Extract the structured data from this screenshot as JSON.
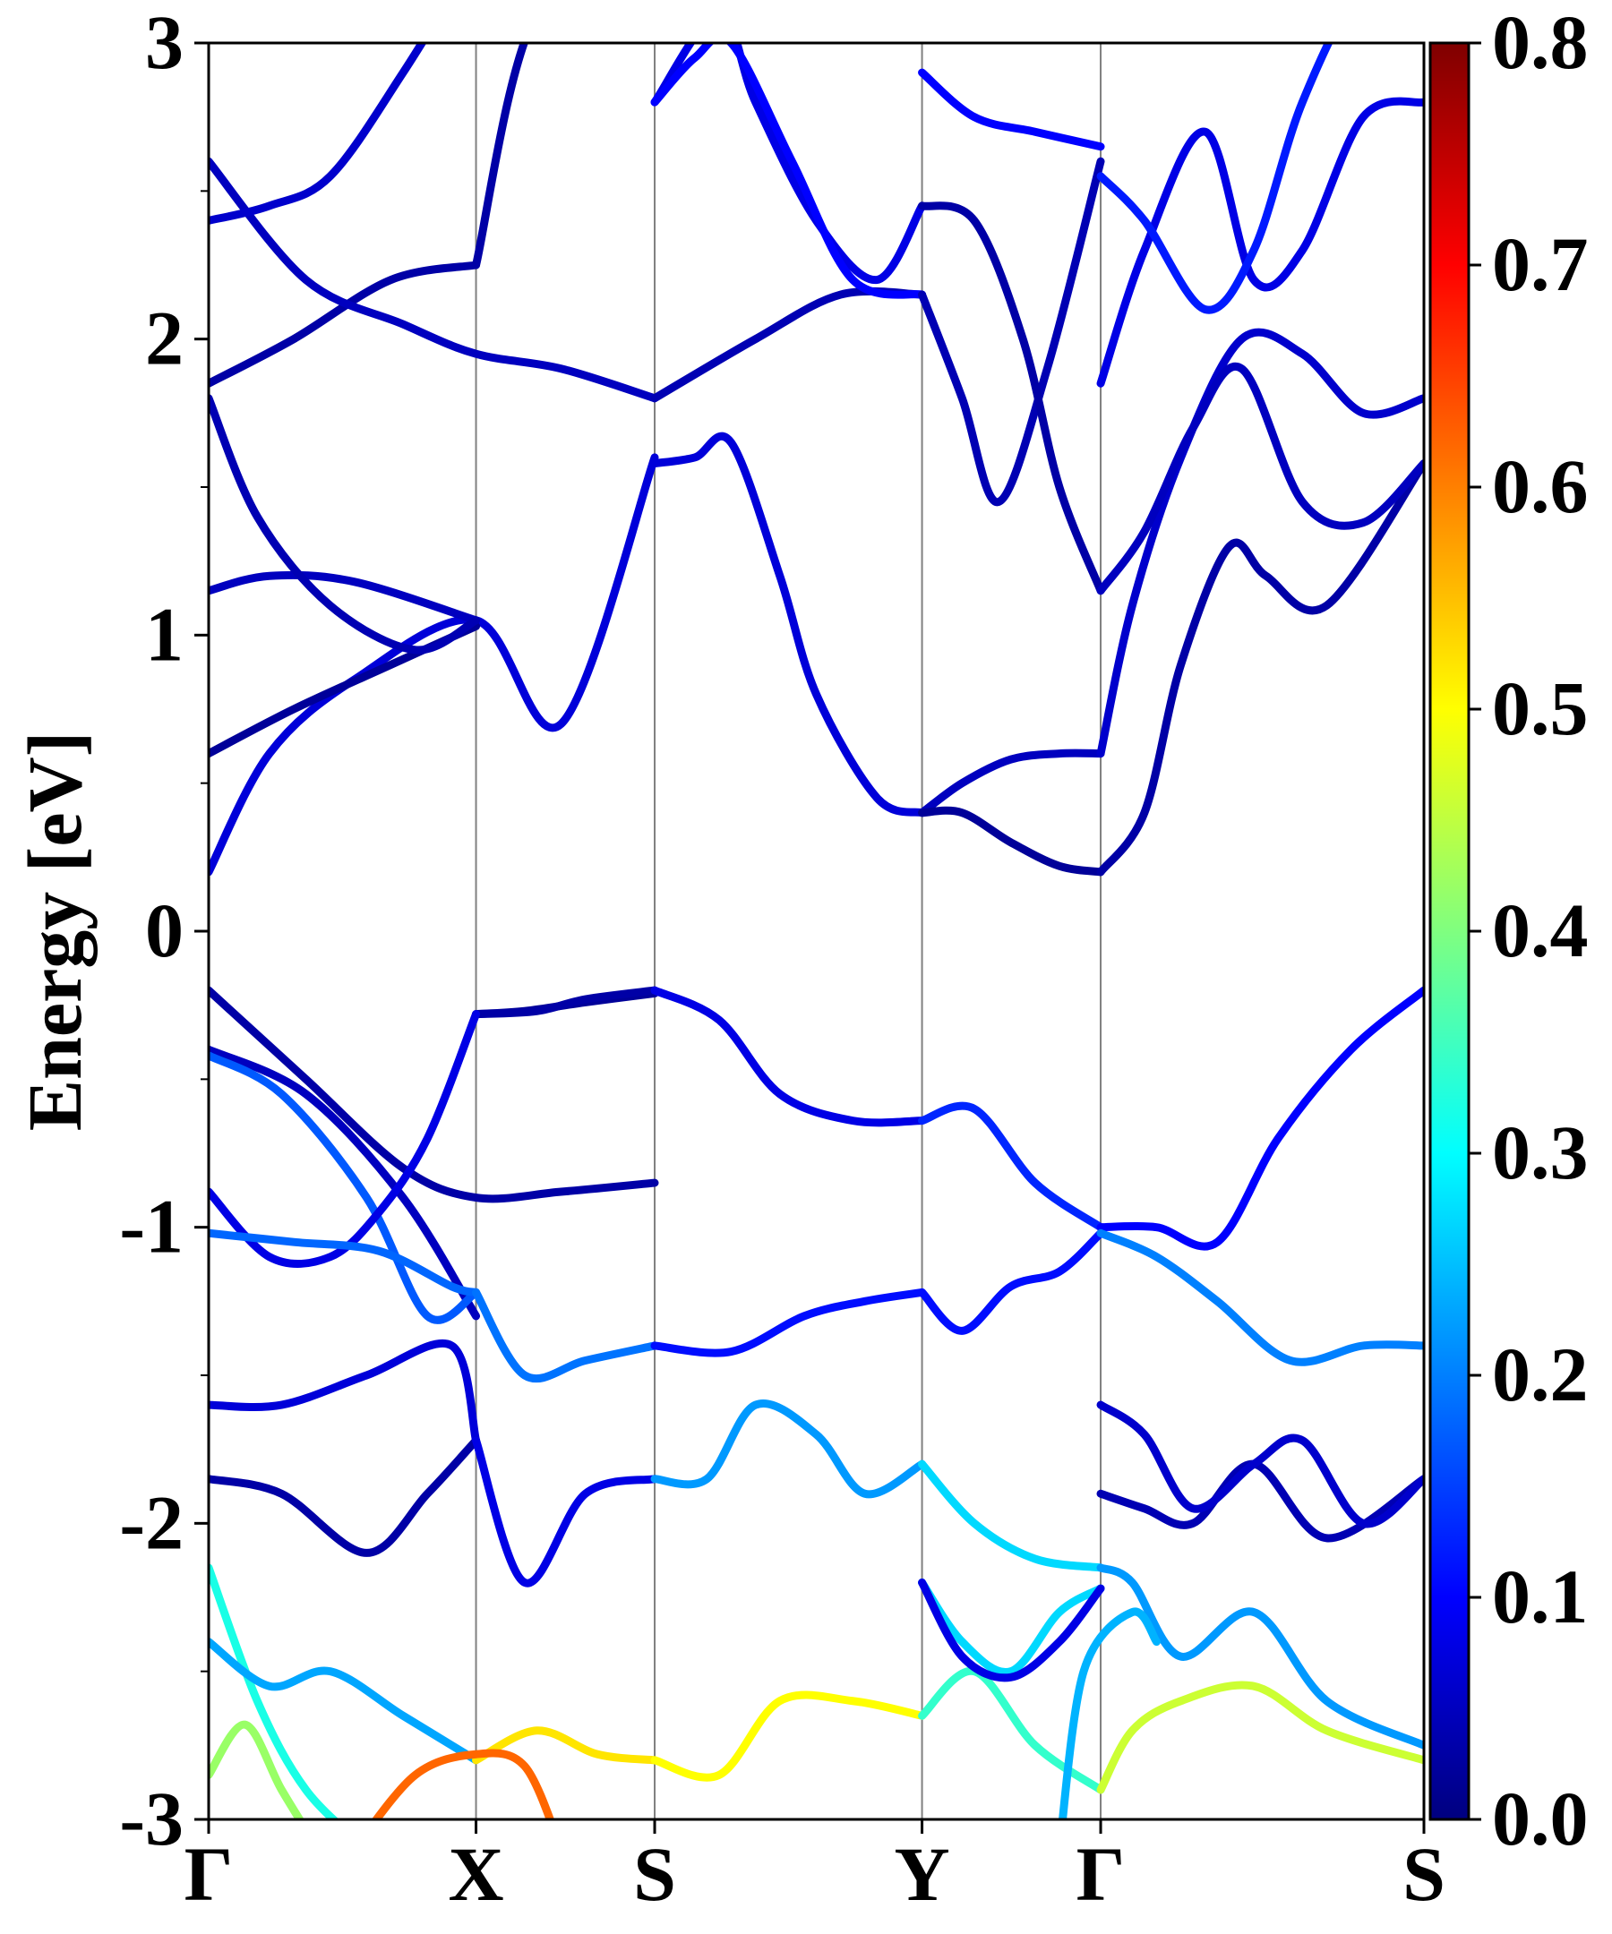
{
  "chart_data": {
    "type": "line",
    "title": "",
    "ylabel": "Energy [eV]",
    "xlabel": "",
    "ylim": [
      -3,
      3
    ],
    "yticks": [
      "3",
      "2",
      "1",
      "0",
      "-1",
      "-2",
      "-3"
    ],
    "ytick_values": [
      3,
      2,
      1,
      0,
      -1,
      -2,
      -3
    ],
    "kpoints": [
      {
        "label": "Γ",
        "x": 0.0
      },
      {
        "label": "X",
        "x": 0.22
      },
      {
        "label": "S",
        "x": 0.367
      },
      {
        "label": "Y",
        "x": 0.587
      },
      {
        "label": "Γ",
        "x": 0.734
      },
      {
        "label": "S",
        "x": 1.0
      }
    ],
    "colorbar": {
      "label": "",
      "min": 0.0,
      "max": 0.8,
      "ticks": [
        "0.8",
        "0.7",
        "0.6",
        "0.5",
        "0.4",
        "0.3",
        "0.2",
        "0.1",
        "0.0"
      ],
      "tick_values": [
        0.8,
        0.7,
        0.6,
        0.5,
        0.4,
        0.3,
        0.2,
        0.1,
        0.0
      ],
      "colormap": "jet"
    },
    "series": [
      {
        "x": [
          0,
          0.05,
          0.12,
          0.22,
          0.29,
          0.367
        ],
        "y": [
          0.2,
          0.6,
          0.85,
          1.05,
          0.7,
          1.6
        ],
        "weight": 0.07
      },
      {
        "x": [
          0,
          0.07,
          0.15,
          0.22
        ],
        "y": [
          0.6,
          0.75,
          0.9,
          1.03
        ],
        "weight": 0.02
      },
      {
        "x": [
          0,
          0.05,
          0.12,
          0.22
        ],
        "y": [
          1.15,
          1.2,
          1.18,
          1.05
        ],
        "weight": 0.05
      },
      {
        "x": [
          0,
          0.04,
          0.1,
          0.17,
          0.22
        ],
        "y": [
          1.8,
          1.4,
          1.1,
          0.95,
          1.05
        ],
        "weight": 0.04
      },
      {
        "x": [
          0,
          0.07,
          0.15,
          0.22
        ],
        "y": [
          1.85,
          2.0,
          2.2,
          2.25
        ],
        "weight": 0.03
      },
      {
        "x": [
          0.22,
          0.27,
          0.367
        ],
        "y": [
          2.25,
          3.1,
          3.3
        ],
        "weight": 0.03
      },
      {
        "x": [
          0,
          0.08,
          0.16,
          0.22,
          0.29,
          0.367
        ],
        "y": [
          2.6,
          2.2,
          2.05,
          1.95,
          1.9,
          1.8
        ],
        "weight": 0.05
      },
      {
        "x": [
          0.367,
          0.45,
          0.52,
          0.587
        ],
        "y": [
          1.8,
          2.0,
          2.15,
          2.15
        ],
        "weight": 0.04
      },
      {
        "x": [
          0,
          0.05,
          0.1,
          0.16,
          0.22
        ],
        "y": [
          2.4,
          2.45,
          2.55,
          2.9,
          3.3
        ],
        "weight": 0.06
      },
      {
        "x": [
          0.367,
          0.4,
          0.43,
          0.47,
          0.5,
          0.55,
          0.587
        ],
        "y": [
          1.58,
          1.6,
          1.65,
          1.2,
          0.8,
          0.45,
          0.4
        ],
        "weight": 0.07
      },
      {
        "x": [
          0.367,
          0.42,
          0.45,
          0.5,
          0.55,
          0.587
        ],
        "y": [
          2.8,
          3.1,
          2.8,
          2.4,
          2.2,
          2.45
        ],
        "weight": 0.08
      },
      {
        "x": [
          0.367,
          0.4,
          0.43,
          0.48,
          0.53,
          0.587
        ],
        "y": [
          2.8,
          2.95,
          3.0,
          2.6,
          2.2,
          2.15
        ],
        "weight": 0.1
      },
      {
        "x": [
          0.587,
          0.62,
          0.66,
          0.7,
          0.734
        ],
        "y": [
          0.4,
          0.5,
          0.58,
          0.6,
          0.6
        ],
        "weight": 0.05
      },
      {
        "x": [
          0.587,
          0.62,
          0.66,
          0.7,
          0.734
        ],
        "y": [
          0.4,
          0.4,
          0.3,
          0.22,
          0.2
        ],
        "weight": 0.02
      },
      {
        "x": [
          0.587,
          0.62,
          0.65,
          0.69,
          0.734
        ],
        "y": [
          2.15,
          1.8,
          1.45,
          1.9,
          2.6
        ],
        "weight": 0.04
      },
      {
        "x": [
          0.587,
          0.63,
          0.67,
          0.7,
          0.734
        ],
        "y": [
          2.45,
          2.4,
          2.0,
          1.5,
          1.15
        ],
        "weight": 0.03
      },
      {
        "x": [
          0.587,
          0.63,
          0.68,
          0.734
        ],
        "y": [
          2.9,
          2.75,
          2.7,
          2.65
        ],
        "weight": 0.1
      },
      {
        "x": [
          0.734,
          0.76,
          0.8,
          0.85,
          0.9,
          0.95,
          1.0
        ],
        "y": [
          0.6,
          1.1,
          1.6,
          2.0,
          1.95,
          1.75,
          1.8
        ],
        "weight": 0.06
      },
      {
        "x": [
          0.734,
          0.77,
          0.8,
          0.84,
          0.87,
          0.92,
          1.0
        ],
        "y": [
          0.2,
          0.4,
          0.9,
          1.3,
          1.2,
          1.1,
          1.58
        ],
        "weight": 0.03
      },
      {
        "x": [
          0.734,
          0.77,
          0.81,
          0.85,
          0.9,
          0.95,
          1.0
        ],
        "y": [
          1.15,
          1.35,
          1.7,
          1.9,
          1.45,
          1.38,
          1.58
        ],
        "weight": 0.05
      },
      {
        "x": [
          0.734,
          0.77,
          0.82,
          0.86,
          0.9,
          0.95,
          1.0
        ],
        "y": [
          1.85,
          2.3,
          2.7,
          2.2,
          2.3,
          2.75,
          2.8
        ],
        "weight": 0.08
      },
      {
        "x": [
          0.734,
          0.77,
          0.82,
          0.86,
          0.9,
          0.95,
          1.0
        ],
        "y": [
          2.55,
          2.4,
          2.1,
          2.3,
          2.8,
          3.2,
          3.3
        ],
        "weight": 0.12
      },
      {
        "x": [
          0,
          0.08,
          0.16,
          0.22,
          0.29,
          0.367
        ],
        "y": [
          -0.2,
          -0.5,
          -0.8,
          -0.9,
          -0.88,
          -0.85
        ],
        "weight": 0.03
      },
      {
        "x": [
          0,
          0.08,
          0.16,
          0.22
        ],
        "y": [
          -0.4,
          -0.55,
          -0.9,
          -1.3
        ],
        "weight": 0.05
      },
      {
        "x": [
          0.22,
          0.26,
          0.31,
          0.367
        ],
        "y": [
          -0.28,
          -0.27,
          -0.24,
          -0.21
        ],
        "weight": 0.02
      },
      {
        "x": [
          0.22,
          0.27,
          0.31,
          0.367
        ],
        "y": [
          -0.28,
          -0.27,
          -0.23,
          -0.2
        ],
        "weight": 0.03
      },
      {
        "x": [
          0.367,
          0.42,
          0.47,
          0.53,
          0.587
        ],
        "y": [
          -0.2,
          -0.3,
          -0.55,
          -0.64,
          -0.64
        ],
        "weight": 0.08
      },
      {
        "x": [
          0.587,
          0.63,
          0.68,
          0.734
        ],
        "y": [
          -0.64,
          -0.6,
          -0.85,
          -1.0
        ],
        "weight": 0.13
      },
      {
        "x": [
          0.734,
          0.78,
          0.83,
          0.88,
          0.94,
          1.0
        ],
        "y": [
          -1.0,
          -1.0,
          -1.05,
          -0.7,
          -0.4,
          -0.2
        ],
        "weight": 0.1
      },
      {
        "x": [
          0,
          0.06,
          0.13,
          0.18,
          0.22
        ],
        "y": [
          -0.42,
          -0.55,
          -0.9,
          -1.3,
          -1.22
        ],
        "weight": 0.17
      },
      {
        "x": [
          0,
          0.05,
          0.1,
          0.14,
          0.18,
          0.22
        ],
        "y": [
          -0.88,
          -1.1,
          -1.1,
          -0.95,
          -0.7,
          -0.28
        ],
        "weight": 0.08
      },
      {
        "x": [
          0,
          0.07,
          0.14,
          0.2,
          0.22
        ],
        "y": [
          -1.02,
          -1.05,
          -1.08,
          -1.2,
          -1.22
        ],
        "weight": 0.18
      },
      {
        "x": [
          0.22,
          0.26,
          0.31,
          0.367
        ],
        "y": [
          -1.22,
          -1.5,
          -1.45,
          -1.4
        ],
        "weight": 0.19
      },
      {
        "x": [
          0.367,
          0.43,
          0.49,
          0.54,
          0.587
        ],
        "y": [
          -1.4,
          -1.42,
          -1.3,
          -1.25,
          -1.22
        ],
        "weight": 0.11
      },
      {
        "x": [
          0.587,
          0.62,
          0.66,
          0.7,
          0.734
        ],
        "y": [
          -1.22,
          -1.35,
          -1.2,
          -1.15,
          -1.02
        ],
        "weight": 0.11
      },
      {
        "x": [
          0.734,
          0.78,
          0.83,
          0.89,
          0.95,
          1.0
        ],
        "y": [
          -1.02,
          -1.1,
          -1.25,
          -1.45,
          -1.4,
          -1.4
        ],
        "weight": 0.2
      },
      {
        "x": [
          0,
          0.06,
          0.13,
          0.2,
          0.22
        ],
        "y": [
          -1.6,
          -1.6,
          -1.5,
          -1.4,
          -1.72
        ],
        "weight": 0.07
      },
      {
        "x": [
          0,
          0.06,
          0.13,
          0.18,
          0.22
        ],
        "y": [
          -1.85,
          -1.9,
          -2.1,
          -1.9,
          -1.72
        ],
        "weight": 0.03
      },
      {
        "x": [
          0.22,
          0.26,
          0.31,
          0.367
        ],
        "y": [
          -1.72,
          -2.2,
          -1.9,
          -1.85
        ],
        "weight": 0.08
      },
      {
        "x": [
          0.367,
          0.41,
          0.45,
          0.5,
          0.54,
          0.587
        ],
        "y": [
          -1.85,
          -1.85,
          -1.6,
          -1.7,
          -1.9,
          -1.8
        ],
        "weight": 0.22
      },
      {
        "x": [
          0.587,
          0.63,
          0.68,
          0.734
        ],
        "y": [
          -1.8,
          -2.0,
          -2.12,
          -2.15
        ],
        "weight": 0.27
      },
      {
        "x": [
          0.734,
          0.76,
          0.8,
          0.86,
          0.92,
          1.0
        ],
        "y": [
          -2.15,
          -2.2,
          -2.45,
          -2.3,
          -2.6,
          -2.75
        ],
        "weight": 0.22
      },
      {
        "x": [
          0.734,
          0.77,
          0.81,
          0.86,
          0.92,
          1.0
        ],
        "y": [
          -1.9,
          -1.95,
          -2.0,
          -1.8,
          -2.05,
          -1.85
        ],
        "weight": 0.04
      },
      {
        "x": [
          0.734,
          0.77,
          0.81,
          0.86,
          0.9,
          0.95,
          1.0
        ],
        "y": [
          -1.6,
          -1.7,
          -1.95,
          -1.8,
          -1.72,
          -2.0,
          -1.85
        ],
        "weight": 0.06
      },
      {
        "x": [
          0,
          0.04,
          0.08,
          0.13
        ],
        "y": [
          -2.15,
          -2.6,
          -2.9,
          -3.1
        ],
        "weight": 0.32
      },
      {
        "x": [
          0,
          0.05,
          0.1,
          0.16,
          0.22
        ],
        "y": [
          -2.4,
          -2.55,
          -2.5,
          -2.65,
          -2.8
        ],
        "weight": 0.23
      },
      {
        "x": [
          0.22,
          0.27,
          0.32,
          0.367
        ],
        "y": [
          -2.8,
          -2.7,
          -2.78,
          -2.8
        ],
        "weight": 0.52
      },
      {
        "x": [
          0.367,
          0.42,
          0.47,
          0.53,
          0.587
        ],
        "y": [
          -2.8,
          -2.85,
          -2.6,
          -2.6,
          -2.65
        ],
        "weight": 0.5
      },
      {
        "x": [
          0.587,
          0.63,
          0.68,
          0.734
        ],
        "y": [
          -2.65,
          -2.5,
          -2.75,
          -2.9
        ],
        "weight": 0.34
      },
      {
        "x": [
          0.734,
          0.76,
          0.8,
          0.86,
          0.92,
          1.0
        ],
        "y": [
          -2.9,
          -2.7,
          -2.6,
          -2.55,
          -2.7,
          -2.8
        ],
        "weight": 0.46
      },
      {
        "x": [
          0,
          0.03,
          0.06,
          0.09
        ],
        "y": [
          -2.85,
          -2.68,
          -2.9,
          -3.1
        ],
        "weight": 0.42
      },
      {
        "x": [
          0.12,
          0.17,
          0.22,
          0.26,
          0.29
        ],
        "y": [
          -3.1,
          -2.85,
          -2.78,
          -2.82,
          -3.1
        ],
        "weight": 0.62
      },
      {
        "x": [
          0.587,
          0.62,
          0.66,
          0.7,
          0.734
        ],
        "y": [
          -2.2,
          -2.4,
          -2.5,
          -2.3,
          -2.22
        ],
        "weight": 0.27
      },
      {
        "x": [
          0.587,
          0.62,
          0.66,
          0.7,
          0.734
        ],
        "y": [
          -2.2,
          -2.45,
          -2.52,
          -2.4,
          -2.22
        ],
        "weight": 0.08
      },
      {
        "x": [
          0.7,
          0.72,
          0.76,
          0.78
        ],
        "y": [
          -3.1,
          -2.5,
          -2.3,
          -2.4
        ],
        "weight": 0.24
      }
    ]
  }
}
